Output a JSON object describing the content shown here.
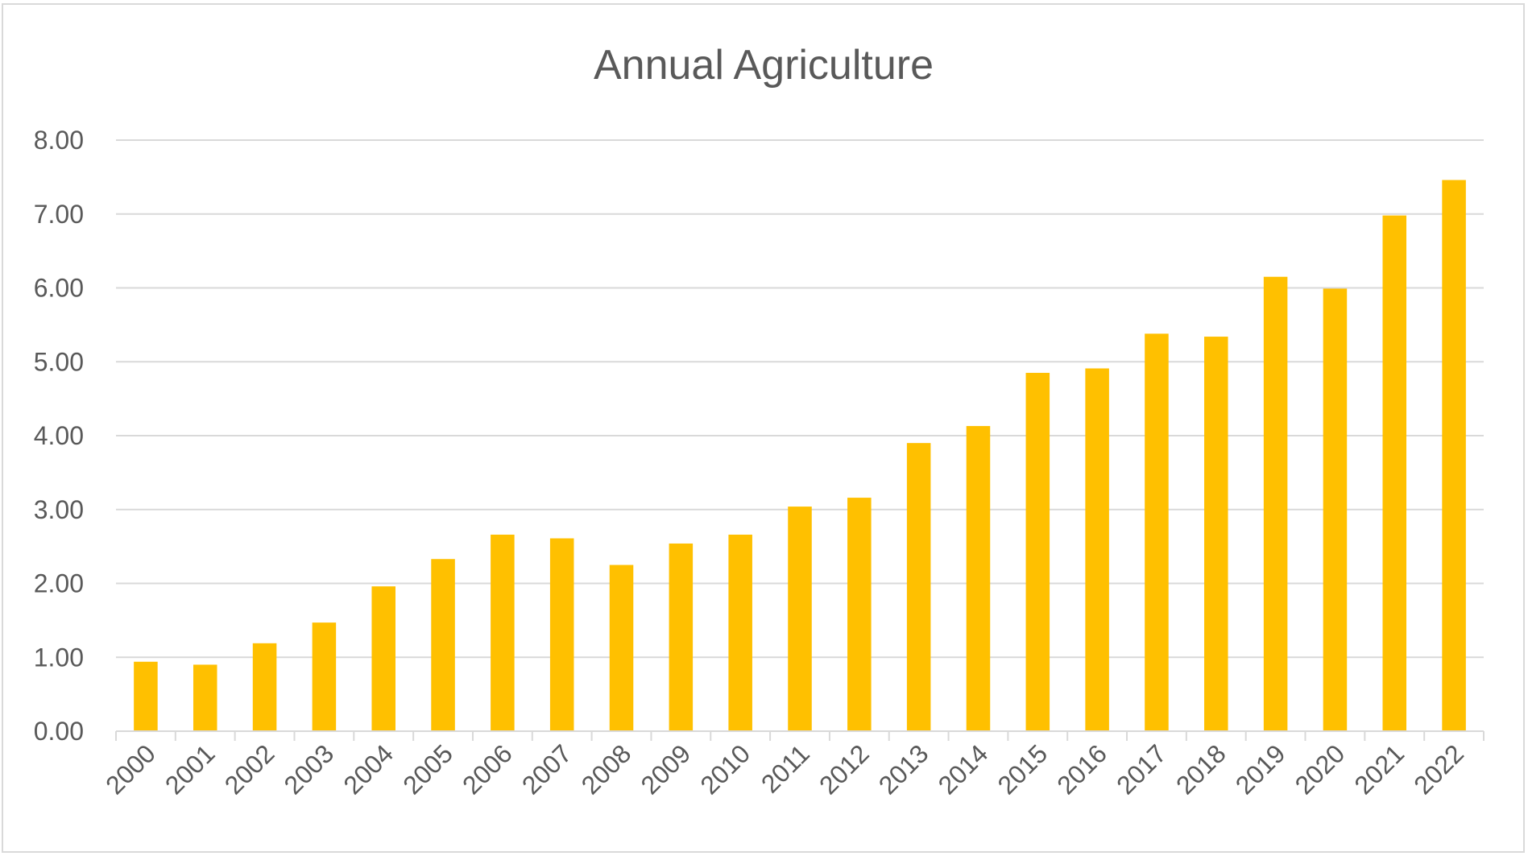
{
  "chart_data": {
    "type": "bar",
    "title": "Annual Agriculture",
    "xlabel": "",
    "ylabel": "",
    "ylim": [
      0,
      8
    ],
    "yticks": [
      "0.00",
      "1.00",
      "2.00",
      "3.00",
      "4.00",
      "5.00",
      "6.00",
      "7.00",
      "8.00"
    ],
    "grid": true,
    "legend": "none",
    "bar_color": "#FFC000",
    "categories": [
      "2000",
      "2001",
      "2002",
      "2003",
      "2004",
      "2005",
      "2006",
      "2007",
      "2008",
      "2009",
      "2010",
      "2011",
      "2012",
      "2013",
      "2014",
      "2015",
      "2016",
      "2017",
      "2018",
      "2019",
      "2020",
      "2021",
      "2022"
    ],
    "values": [
      0.94,
      0.9,
      1.19,
      1.47,
      1.96,
      2.33,
      2.66,
      2.61,
      2.25,
      2.54,
      2.66,
      3.04,
      3.16,
      3.9,
      4.13,
      4.85,
      4.91,
      5.38,
      5.34,
      6.15,
      5.99,
      6.98,
      7.46
    ]
  }
}
